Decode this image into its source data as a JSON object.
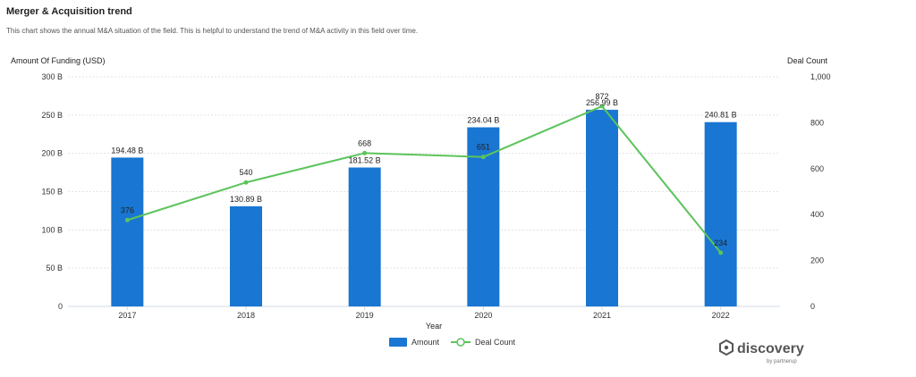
{
  "header": {
    "title": "Merger & Acquisition trend",
    "subtitle": "This chart shows the annual M&A situation of the field. This is helpful to understand the trend of M&A activity in this field over time."
  },
  "chart_data": {
    "type": "bar",
    "categories": [
      "2017",
      "2018",
      "2019",
      "2020",
      "2021",
      "2022"
    ],
    "series": [
      {
        "name": "Amount",
        "type": "bar",
        "axis": "left",
        "values": [
          194.48,
          130.89,
          181.52,
          234.04,
          256.99,
          240.81
        ],
        "labels": [
          "194.48 B",
          "130.89 B",
          "181.52 B",
          "234.04 B",
          "256.99 B",
          "240.81 B"
        ],
        "color": "#1976D2"
      },
      {
        "name": "Deal Count",
        "type": "line",
        "axis": "right",
        "values": [
          376,
          540,
          668,
          651,
          872,
          234
        ],
        "labels": [
          "376",
          "540",
          "668",
          "651",
          "872",
          "234"
        ],
        "color": "#5CC45C"
      }
    ],
    "xlabel": "Year",
    "ylabel": "Amount Of Funding (USD)",
    "y2label": "Deal Count",
    "ylim": [
      0,
      300
    ],
    "y2lim": [
      0,
      1000
    ],
    "yticks": [
      "0",
      "50 B",
      "100 B",
      "150 B",
      "200 B",
      "250 B",
      "300 B"
    ],
    "y2ticks": [
      "0",
      "200",
      "400",
      "600",
      "800",
      "1,000"
    ],
    "grid": true,
    "legend": "bottom-center"
  },
  "branding": {
    "name": "discovery",
    "byline": "by partnerup"
  }
}
